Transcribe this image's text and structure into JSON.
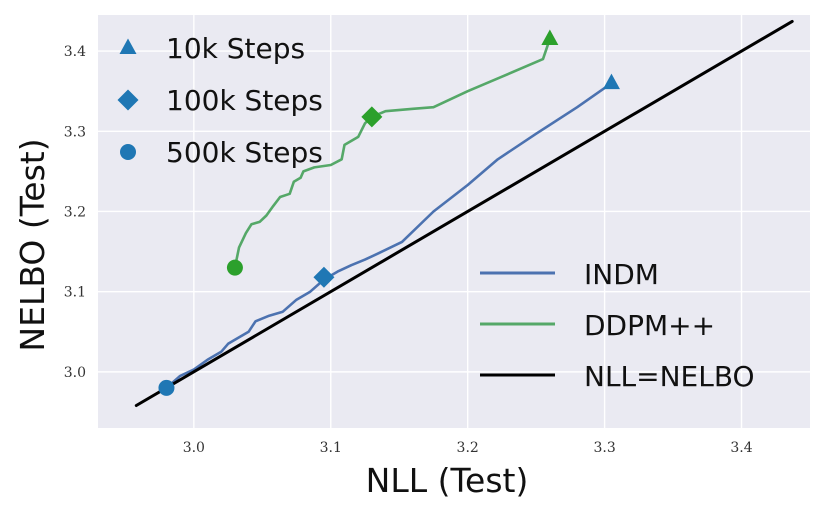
{
  "colors": {
    "background": "#eaeaf2",
    "grid": "#ffffff",
    "indm": "#4c72b0",
    "ddpm": "#55a868",
    "identity": "#000000",
    "marker_indm": "#1f77b4",
    "marker_ddpm": "#2ca02c"
  },
  "chart_data": {
    "type": "line",
    "title": "",
    "xlabel": "NLL (Test)",
    "ylabel": "NELBO (Test)",
    "xlim": [
      2.93,
      3.45
    ],
    "ylim": [
      2.93,
      3.445
    ],
    "grid": true,
    "x_ticks": [
      3.0,
      3.1,
      3.2,
      3.3,
      3.4
    ],
    "x_tick_labels": [
      "3.0",
      "3.1",
      "3.2",
      "3.3",
      "3.4"
    ],
    "y_ticks": [
      3.0,
      3.1,
      3.2,
      3.3,
      3.4
    ],
    "y_tick_labels": [
      "3.0",
      "3.1",
      "3.2",
      "3.3",
      "3.4"
    ],
    "series": [
      {
        "name": "INDM",
        "color_key": "indm",
        "points": [
          [
            2.98,
            2.98
          ],
          [
            2.99,
            2.995
          ],
          [
            3.0,
            3.003
          ],
          [
            3.01,
            3.015
          ],
          [
            3.02,
            3.025
          ],
          [
            3.025,
            3.035
          ],
          [
            3.03,
            3.04
          ],
          [
            3.04,
            3.05
          ],
          [
            3.045,
            3.063
          ],
          [
            3.055,
            3.07
          ],
          [
            3.065,
            3.075
          ],
          [
            3.075,
            3.09
          ],
          [
            3.085,
            3.1
          ],
          [
            3.095,
            3.115
          ],
          [
            3.105,
            3.125
          ],
          [
            3.115,
            3.133
          ],
          [
            3.125,
            3.14
          ],
          [
            3.135,
            3.148
          ],
          [
            3.152,
            3.162
          ],
          [
            3.175,
            3.2
          ],
          [
            3.2,
            3.233
          ],
          [
            3.222,
            3.265
          ],
          [
            3.25,
            3.297
          ],
          [
            3.28,
            3.33
          ],
          [
            3.305,
            3.36
          ]
        ]
      },
      {
        "name": "DDPM++",
        "color_key": "ddpm",
        "points": [
          [
            3.03,
            3.13
          ],
          [
            3.033,
            3.155
          ],
          [
            3.038,
            3.173
          ],
          [
            3.042,
            3.184
          ],
          [
            3.048,
            3.187
          ],
          [
            3.053,
            3.195
          ],
          [
            3.058,
            3.207
          ],
          [
            3.063,
            3.218
          ],
          [
            3.07,
            3.222
          ],
          [
            3.073,
            3.237
          ],
          [
            3.078,
            3.242
          ],
          [
            3.08,
            3.25
          ],
          [
            3.088,
            3.255
          ],
          [
            3.1,
            3.258
          ],
          [
            3.108,
            3.265
          ],
          [
            3.11,
            3.283
          ],
          [
            3.12,
            3.293
          ],
          [
            3.125,
            3.31
          ],
          [
            3.13,
            3.318
          ],
          [
            3.14,
            3.325
          ],
          [
            3.16,
            3.328
          ],
          [
            3.175,
            3.33
          ],
          [
            3.2,
            3.35
          ],
          [
            3.225,
            3.368
          ],
          [
            3.255,
            3.39
          ],
          [
            3.26,
            3.415
          ]
        ]
      },
      {
        "name": "NLL=NELBO",
        "color_key": "identity",
        "points": [
          [
            2.958,
            2.958
          ],
          [
            3.437,
            3.437
          ]
        ]
      }
    ],
    "markers": [
      {
        "series": "DDPM++",
        "shape": "triangle",
        "x": 3.26,
        "y": 3.415
      },
      {
        "series": "DDPM++",
        "shape": "diamond",
        "x": 3.13,
        "y": 3.318
      },
      {
        "series": "DDPM++",
        "shape": "circle",
        "x": 3.03,
        "y": 3.13
      },
      {
        "series": "INDM",
        "shape": "triangle",
        "x": 3.305,
        "y": 3.36
      },
      {
        "series": "INDM",
        "shape": "diamond",
        "x": 3.095,
        "y": 3.118
      },
      {
        "series": "INDM",
        "shape": "circle",
        "x": 2.98,
        "y": 2.98
      }
    ],
    "legend_steps": {
      "placement": "top-left",
      "entries": [
        {
          "label": "10k Steps",
          "shape": "triangle"
        },
        {
          "label": "100k Steps",
          "shape": "diamond"
        },
        {
          "label": "500k Steps",
          "shape": "circle"
        }
      ]
    },
    "legend_models": {
      "placement": "bottom-right",
      "entries": [
        {
          "label": "INDM",
          "color_key": "indm"
        },
        {
          "label": "DDPM++",
          "color_key": "ddpm"
        },
        {
          "label": "NLL=NELBO",
          "color_key": "identity"
        }
      ]
    }
  }
}
